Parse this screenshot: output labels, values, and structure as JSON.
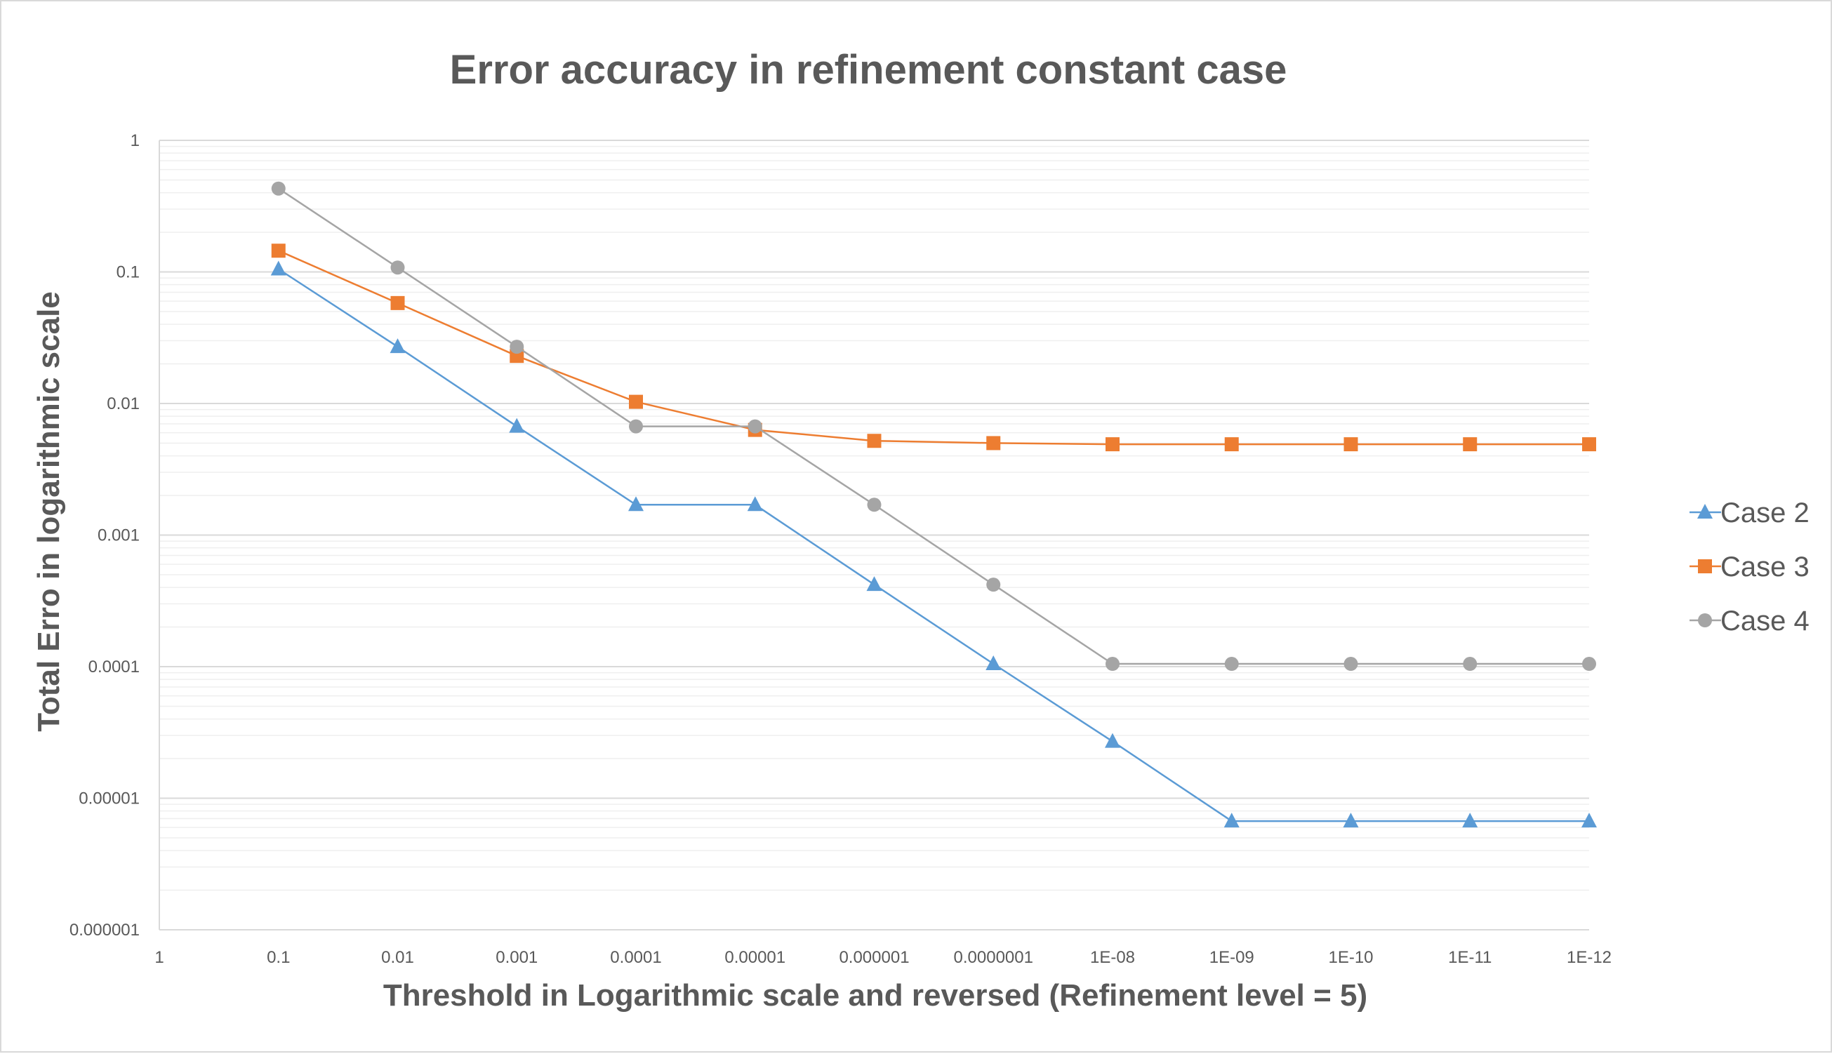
{
  "chart_data": {
    "type": "line",
    "title": "Error accuracy in refinement constant case",
    "xlabel": "Threshold in Logarithmic scale and reversed (Refinement level = 5)",
    "ylabel": "Total Erro in logarithmic scale",
    "x_scale": "log",
    "x_reversed": true,
    "y_scale": "log",
    "xlim": [
      1,
      1e-12
    ],
    "ylim": [
      1e-06,
      1
    ],
    "grid": true,
    "legend": "right",
    "x_tick_labels": [
      "1",
      "0.1",
      "0.01",
      "0.001",
      "0.0001",
      "0.00001",
      "0.000001",
      "0.0000001",
      "1E-08",
      "1E-09",
      "1E-10",
      "1E-11",
      "1E-12"
    ],
    "y_tick_labels": [
      "1",
      "0.1",
      "0.01",
      "0.001",
      "0.0001",
      "0.00001",
      "0.000001"
    ],
    "x": [
      0.1,
      0.01,
      0.001,
      0.0001,
      1e-05,
      1e-06,
      1e-07,
      1e-08,
      1e-09,
      1e-10,
      1e-11,
      1e-12
    ],
    "series": [
      {
        "name": "Case 2",
        "color": "#5b9bd5",
        "marker": "triangle",
        "values": [
          0.105,
          0.027,
          0.0067,
          0.0017,
          0.0017,
          0.00042,
          0.000105,
          2.7e-05,
          6.7e-06,
          6.7e-06,
          6.7e-06,
          6.7e-06
        ]
      },
      {
        "name": "Case 3",
        "color": "#ed7d31",
        "marker": "square",
        "values": [
          0.145,
          0.058,
          0.023,
          0.0103,
          0.0063,
          0.0052,
          0.005,
          0.0049,
          0.0049,
          0.0049,
          0.0049,
          0.0049
        ]
      },
      {
        "name": "Case 4",
        "color": "#a5a5a5",
        "marker": "circle",
        "values": [
          0.43,
          0.108,
          0.027,
          0.0067,
          0.0067,
          0.0017,
          0.00042,
          0.000105,
          0.000105,
          0.000105,
          0.000105,
          0.000105
        ]
      }
    ]
  }
}
